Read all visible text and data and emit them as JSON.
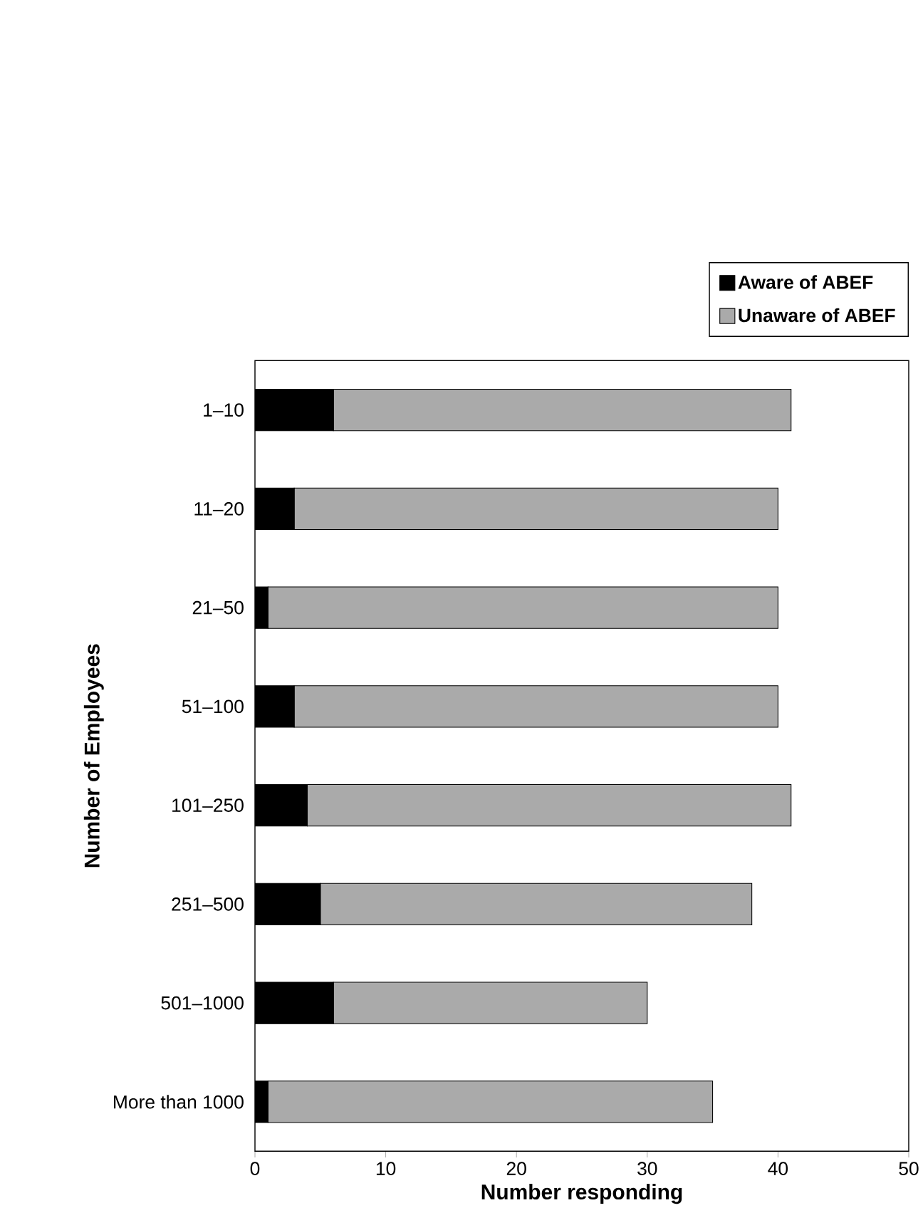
{
  "chart_data": {
    "type": "bar",
    "orientation": "horizontal",
    "stacked": true,
    "xlabel": "Number responding",
    "ylabel": "Number of Employees",
    "categories": [
      "1–10",
      "11–20",
      "21–50",
      "51–100",
      "101–250",
      "251–500",
      "501–1000",
      "More than 1000"
    ],
    "series": [
      {
        "name": "Aware of ABEF",
        "color": "#000000",
        "values": [
          6,
          3,
          1,
          3,
          4,
          5,
          6,
          1
        ]
      },
      {
        "name": "Unaware of ABEF",
        "color": "#aaaaaa",
        "values": [
          35,
          37,
          39,
          37,
          37,
          33,
          24,
          34
        ]
      }
    ],
    "xlim": [
      0,
      50
    ],
    "xticks": [
      0,
      10,
      20,
      30,
      40,
      50
    ],
    "legend": "top right",
    "grid": false
  }
}
